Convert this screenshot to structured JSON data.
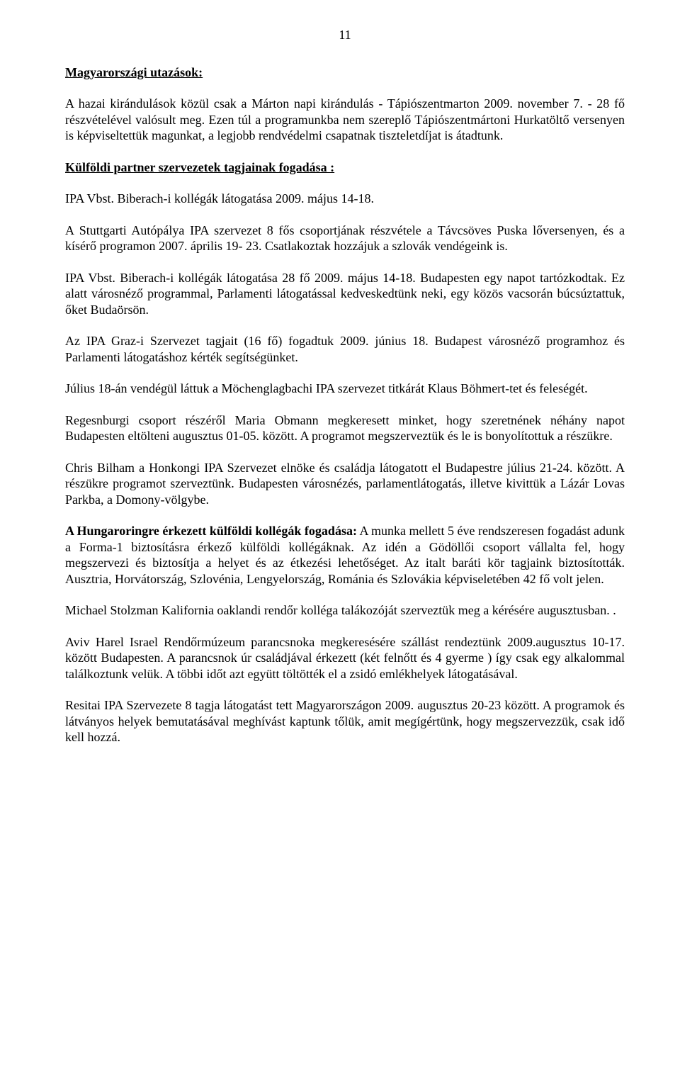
{
  "page_number": "11",
  "heading1": "Magyarországi utazások:",
  "para1": "A hazai kirándulások közül csak a Márton napi kirándulás - Tápiószentmarton 2009. november 7. - 28 fő részvételével valósult meg. Ezen túl a programunkba nem szereplő Tápiószentmártoni Hurkatöltő versenyen is képviseltettük magunkat, a legjobb rendvédelmi csapatnak tiszteletdíjat is átadtunk.",
  "heading2": "Külföldi partner szervezetek tagjainak fogadása :",
  "para2": "IPA Vbst. Biberach-i kollégák látogatása 2009. május 14-18.",
  "para3": "A Stuttgarti Autópálya IPA szervezet 8 fős csoportjának részvétele a Távcsöves Puska lőversenyen, és a kísérő programon 2007. április 19- 23. Csatlakoztak hozzájuk a szlovák vendégeink is.",
  "para4": "IPA Vbst. Biberach-i kollégák látogatása 28 fő 2009. május 14-18. Budapesten egy napot tartózkodtak. Ez alatt városnéző programmal, Parlamenti látogatással kedveskedtünk neki, egy közös vacsorán búcsúztattuk, őket Budaörsön.",
  "para5": "Az IPA Graz-i Szervezet tagjait (16 fő) fogadtuk 2009. június 18. Budapest városnéző programhoz és Parlamenti látogatáshoz kérték segítségünket.",
  "para6": "Július 18-án vendégül láttuk a Möchenglagbachi IPA szervezet titkárát Klaus Böhmert-tet és feleségét.",
  "para7": "Regesnburgi csoport részéről Maria Obmann megkeresett minket, hogy szeretnének néhány napot Budapesten eltölteni augusztus 01-05. között.  A programot megszerveztük és le is bonyolítottuk a részükre.",
  "para8": "Chris Bilham a Honkongi IPA Szervezet elnöke és családja látogatott el Budapestre július 21-24. között. A részükre programot szerveztünk. Budapesten városnézés, parlamentlátogatás, illetve kivittük a Lázár Lovas Parkba, a Domony-völgybe.",
  "para9_bold": "A Hungaroringre érkezett külföldi kollégák fogadása:",
  "para9_rest": " A munka mellett 5 éve rendszeresen fogadást adunk a Forma-1 biztosításra érkező külföldi kollégáknak. Az idén a Gödöllői csoport vállalta fel, hogy megszervezi és biztosítja a helyet és az étkezési lehetőséget. Az italt baráti kör tagjaink biztosították. Ausztria, Horvátország, Szlovénia, Lengyelország, Románia és Szlovákia képviseletében 42 fő volt jelen.",
  "para10": "Michael Stolzman Kalifornia oaklandi rendőr kolléga talákozóját szerveztük meg a kérésére augusztusban. .",
  "para11": "Aviv Harel Israel Rendőrmúzeum parancsnoka megkeresésére szállást rendeztünk 2009.augusztus 10-17. között Budapesten. A parancsnok úr családjával érkezett (két felnőtt és 4 gyerme ) így csak egy alkalommal találkoztunk velük. A többi időt azt együtt töltötték el a zsidó emlékhelyek látogatásával.",
  "para12": "Resitai IPA Szervezete 8 tagja látogatást tett Magyarországon 2009. augusztus 20-23 között. A programok és látványos helyek bemutatásával meghívást kaptunk tőlük, amit megígértünk, hogy megszervezzük, csak idő kell hozzá."
}
